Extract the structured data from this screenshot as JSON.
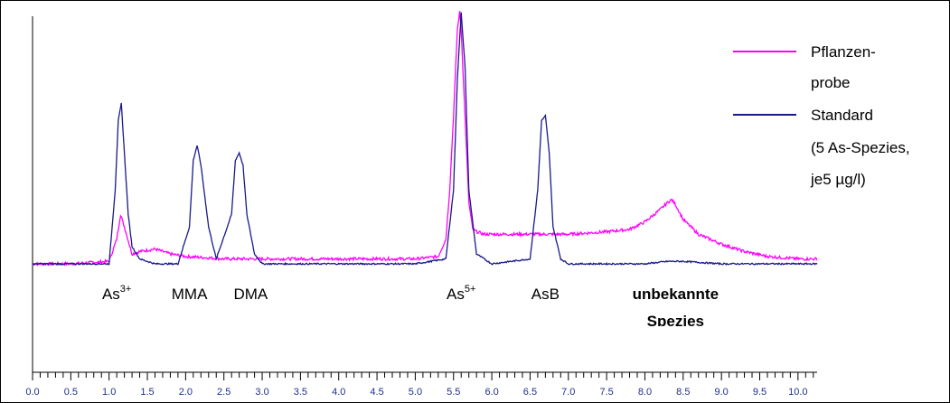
{
  "chart_data": {
    "type": "line",
    "xlim": [
      0.0,
      10.25
    ],
    "x_ticks": [
      "0.0",
      "0.5",
      "1.0",
      "1.5",
      "2.0",
      "2.5",
      "3.0",
      "3.5",
      "4.0",
      "4.5",
      "5.0",
      "5.5",
      "6.0",
      "6.5",
      "7.0",
      "7.5",
      "8.0",
      "8.5",
      "9.0",
      "9.5",
      "10.0"
    ],
    "series": [
      {
        "name": "Pflanzen-probe",
        "color": "#ff00ff",
        "x": [
          0.0,
          0.5,
          1.0,
          1.1,
          1.15,
          1.2,
          1.3,
          1.4,
          1.6,
          1.8,
          2.0,
          2.5,
          3.0,
          3.5,
          4.0,
          4.5,
          5.0,
          5.3,
          5.4,
          5.45,
          5.5,
          5.55,
          5.58,
          5.6,
          5.65,
          5.7,
          5.75,
          5.8,
          5.9,
          6.0,
          6.5,
          7.0,
          7.5,
          7.8,
          8.0,
          8.2,
          8.3,
          8.35,
          8.4,
          8.5,
          8.7,
          9.0,
          9.3,
          9.6,
          10.0,
          10.25
        ],
        "y": [
          0.0,
          0.0,
          0.01,
          0.1,
          0.2,
          0.15,
          0.04,
          0.05,
          0.06,
          0.04,
          0.03,
          0.02,
          0.02,
          0.02,
          0.02,
          0.02,
          0.02,
          0.03,
          0.1,
          0.3,
          0.6,
          0.95,
          1.02,
          0.95,
          0.6,
          0.25,
          0.14,
          0.13,
          0.12,
          0.12,
          0.12,
          0.12,
          0.13,
          0.14,
          0.17,
          0.22,
          0.25,
          0.26,
          0.24,
          0.18,
          0.12,
          0.08,
          0.05,
          0.03,
          0.02,
          0.02
        ]
      },
      {
        "name": "Standard",
        "color": "#1a1a8a",
        "x": [
          0.0,
          0.5,
          1.0,
          1.08,
          1.12,
          1.16,
          1.2,
          1.25,
          1.3,
          1.4,
          1.6,
          1.9,
          2.05,
          2.1,
          2.15,
          2.2,
          2.3,
          2.4,
          2.6,
          2.65,
          2.7,
          2.75,
          2.8,
          2.9,
          3.0,
          3.5,
          4.0,
          4.5,
          5.0,
          5.4,
          5.5,
          5.55,
          5.6,
          5.65,
          5.7,
          5.8,
          6.0,
          6.5,
          6.6,
          6.65,
          6.7,
          6.75,
          6.8,
          6.9,
          7.0,
          7.5,
          8.0,
          8.3,
          8.5,
          9.0,
          9.5,
          10.0,
          10.25
        ],
        "y": [
          0.0,
          0.0,
          0.0,
          0.3,
          0.58,
          0.65,
          0.45,
          0.2,
          0.07,
          0.02,
          0.0,
          0.0,
          0.15,
          0.42,
          0.48,
          0.4,
          0.15,
          0.02,
          0.2,
          0.42,
          0.45,
          0.4,
          0.2,
          0.04,
          0.0,
          0.0,
          0.0,
          0.0,
          0.0,
          0.02,
          0.3,
          0.75,
          1.02,
          0.8,
          0.3,
          0.04,
          0.0,
          0.02,
          0.3,
          0.58,
          0.6,
          0.45,
          0.15,
          0.02,
          0.0,
          0.0,
          0.0,
          0.01,
          0.01,
          0.0,
          0.0,
          0.0,
          0.0
        ]
      }
    ],
    "annotations": [
      {
        "base": "As",
        "sup": "3+",
        "x": 1.1
      },
      {
        "base": "MMA",
        "sup": "",
        "x": 2.05
      },
      {
        "base": "DMA",
        "sup": "",
        "x": 2.85
      },
      {
        "base": "As",
        "sup": "5+",
        "x": 5.6
      },
      {
        "base": "AsB",
        "sup": "",
        "x": 6.7
      }
    ],
    "unknown_label": [
      "unbekannte",
      "Spezies"
    ],
    "legend": [
      {
        "lines": [
          "Pflanzen-",
          "probe"
        ],
        "color": "#ff00ff"
      },
      {
        "lines": [
          "Standard",
          "(5 As-Spezies,",
          " je5 µg/l)"
        ],
        "color": "#1a1a8a"
      }
    ],
    "legend_position": "top-right",
    "grid": false
  }
}
